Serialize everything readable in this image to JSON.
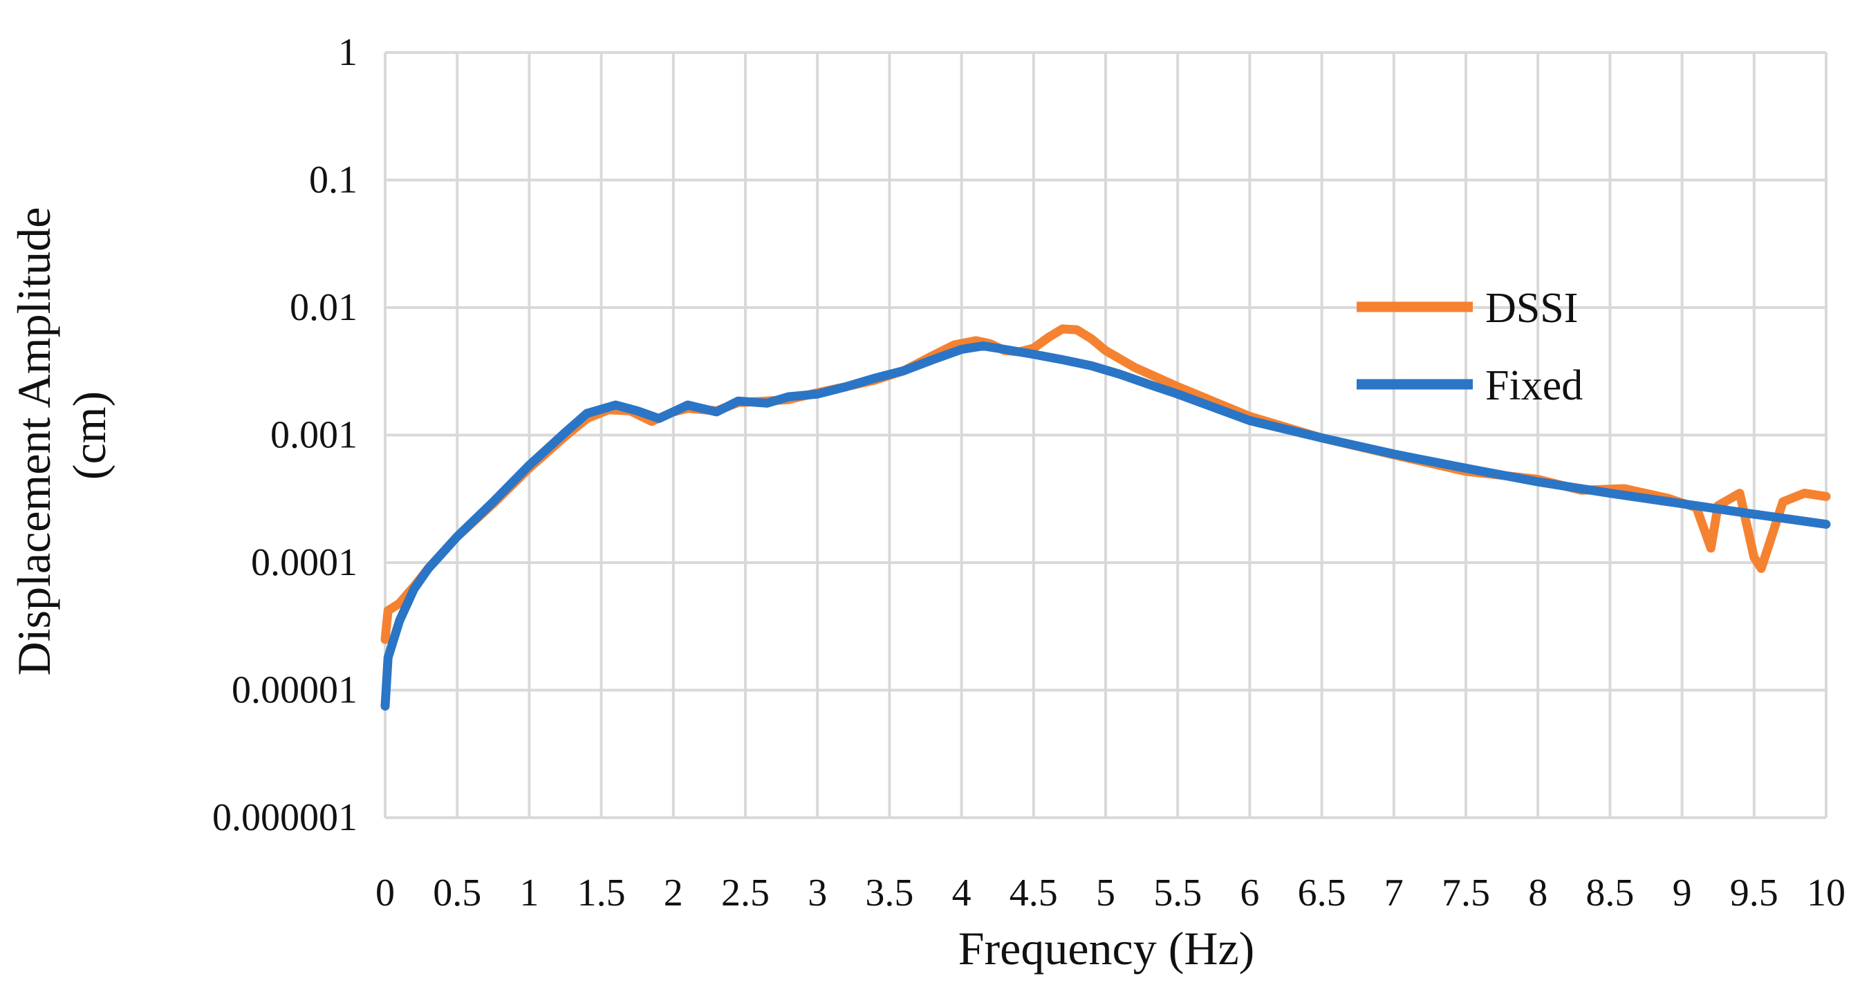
{
  "chart_data": {
    "type": "line",
    "title": "",
    "xlabel": "Frequency (Hz)",
    "ylabel_lines": [
      "Displacement Amplitude",
      "(cm)"
    ],
    "xlim": [
      0,
      10
    ],
    "ylim": [
      1e-06,
      1
    ],
    "y_scale": "log",
    "grid": true,
    "legend_position": "right",
    "x_ticks": [
      "0",
      "0.5",
      "1",
      "1.5",
      "2",
      "2.5",
      "3",
      "3.5",
      "4",
      "4.5",
      "5",
      "5.5",
      "6",
      "6.5",
      "7",
      "7.5",
      "8",
      "8.5",
      "9",
      "9.5",
      "10"
    ],
    "y_ticks": [
      "1",
      "0.1",
      "0.01",
      "0.001",
      "0.0001",
      "0.00001",
      "0.000001"
    ],
    "series": [
      {
        "name": "DSSI",
        "color": "#F58231",
        "x": [
          0,
          0.02,
          0.1,
          0.2,
          0.3,
          0.5,
          0.75,
          1.0,
          1.25,
          1.4,
          1.55,
          1.7,
          1.85,
          2.0,
          2.1,
          2.3,
          2.45,
          2.65,
          2.8,
          3.0,
          3.2,
          3.4,
          3.6,
          3.8,
          3.95,
          4.1,
          4.2,
          4.3,
          4.4,
          4.5,
          4.6,
          4.7,
          4.8,
          4.9,
          5.0,
          5.2,
          5.5,
          6.0,
          6.5,
          7.0,
          7.5,
          8.0,
          8.3,
          8.6,
          8.9,
          9.1,
          9.2,
          9.25,
          9.4,
          9.5,
          9.55,
          9.7,
          9.85,
          10.0
        ],
        "y": [
          2.5e-05,
          4.2e-05,
          4.8e-05,
          6.5e-05,
          9e-05,
          0.00016,
          0.00029,
          0.00055,
          0.00098,
          0.00135,
          0.00158,
          0.00155,
          0.00128,
          0.00152,
          0.00162,
          0.00155,
          0.0018,
          0.00185,
          0.0019,
          0.00215,
          0.0024,
          0.0027,
          0.0032,
          0.0042,
          0.0051,
          0.0055,
          0.0052,
          0.0046,
          0.0045,
          0.0048,
          0.0058,
          0.0068,
          0.0067,
          0.0057,
          0.0046,
          0.0034,
          0.0024,
          0.0014,
          0.00095,
          0.0007,
          0.00052,
          0.00045,
          0.00037,
          0.00038,
          0.00032,
          0.00027,
          0.00013,
          0.00028,
          0.00035,
          0.00011,
          9e-05,
          0.0003,
          0.00035,
          0.00033
        ]
      },
      {
        "name": "Fixed",
        "color": "#2B75C6",
        "x": [
          0,
          0.02,
          0.1,
          0.2,
          0.3,
          0.5,
          0.75,
          1.0,
          1.25,
          1.4,
          1.6,
          1.75,
          1.9,
          2.1,
          2.3,
          2.45,
          2.65,
          2.8,
          3.0,
          3.2,
          3.4,
          3.6,
          3.8,
          4.0,
          4.15,
          4.3,
          4.5,
          4.7,
          4.9,
          5.1,
          5.3,
          5.5,
          6.0,
          6.5,
          7.0,
          7.5,
          8.0,
          8.5,
          9.0,
          9.5,
          10.0
        ],
        "y": [
          7.5e-06,
          1.8e-05,
          3.5e-05,
          6.2e-05,
          9e-05,
          0.00016,
          0.0003,
          0.00058,
          0.00105,
          0.00148,
          0.00172,
          0.00155,
          0.00135,
          0.00172,
          0.00152,
          0.00185,
          0.00178,
          0.002,
          0.0021,
          0.0024,
          0.0028,
          0.0032,
          0.0039,
          0.0047,
          0.005,
          0.0047,
          0.0043,
          0.0039,
          0.0035,
          0.003,
          0.0025,
          0.0021,
          0.0013,
          0.00095,
          0.00071,
          0.00055,
          0.00043,
          0.00035,
          0.00029,
          0.00024,
          0.0002
        ]
      }
    ]
  }
}
